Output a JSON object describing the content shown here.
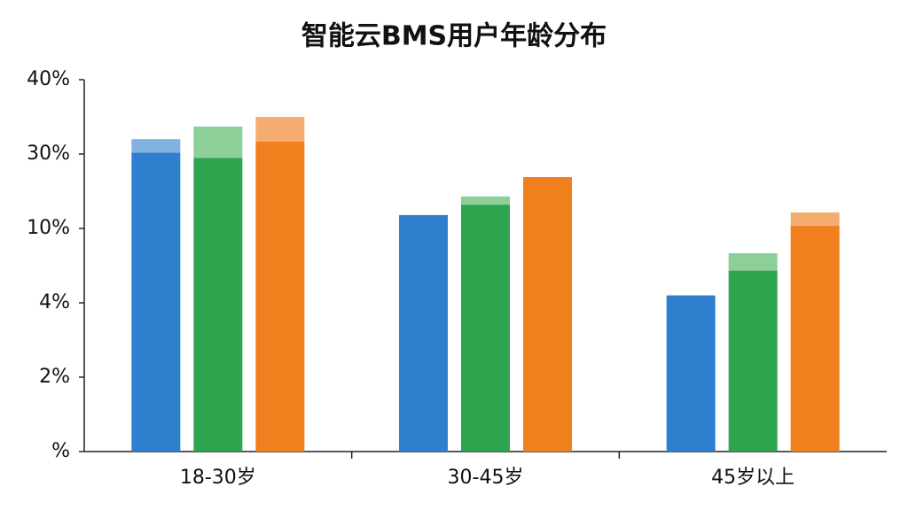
{
  "chart_data": {
    "type": "bar",
    "title": "智能云BMS用户年龄分布",
    "categories": [
      "18-30岁",
      "30-45岁",
      "45岁以上"
    ],
    "series": [
      {
        "color": "#2f7fcf",
        "light_color": "#80b1e0",
        "values": [
          30.2,
          13.6,
          4.6
        ],
        "upper_values": [
          32.0,
          null,
          null
        ]
      },
      {
        "color": "#2ea44f",
        "light_color": "#8ccf99",
        "values": [
          29.0,
          16.4,
          6.6
        ],
        "upper_values": [
          33.7,
          18.6,
          8.0
        ]
      },
      {
        "color": "#f07f1d",
        "light_color": "#f5ad6f",
        "values": [
          31.7,
          23.8,
          10.7
        ],
        "upper_values": [
          35.0,
          null,
          14.3
        ]
      }
    ],
    "ylim": [
      0,
      40
    ],
    "yticks": [
      {
        "value": 0,
        "label": "%"
      },
      {
        "value": 2,
        "label": "2%"
      },
      {
        "value": 4,
        "label": "4%"
      },
      {
        "value": 10,
        "label": "10%"
      },
      {
        "value": 30,
        "label": "30%"
      },
      {
        "value": 40,
        "label": "40%"
      }
    ],
    "y_scale": "piecewise",
    "grid": false
  }
}
